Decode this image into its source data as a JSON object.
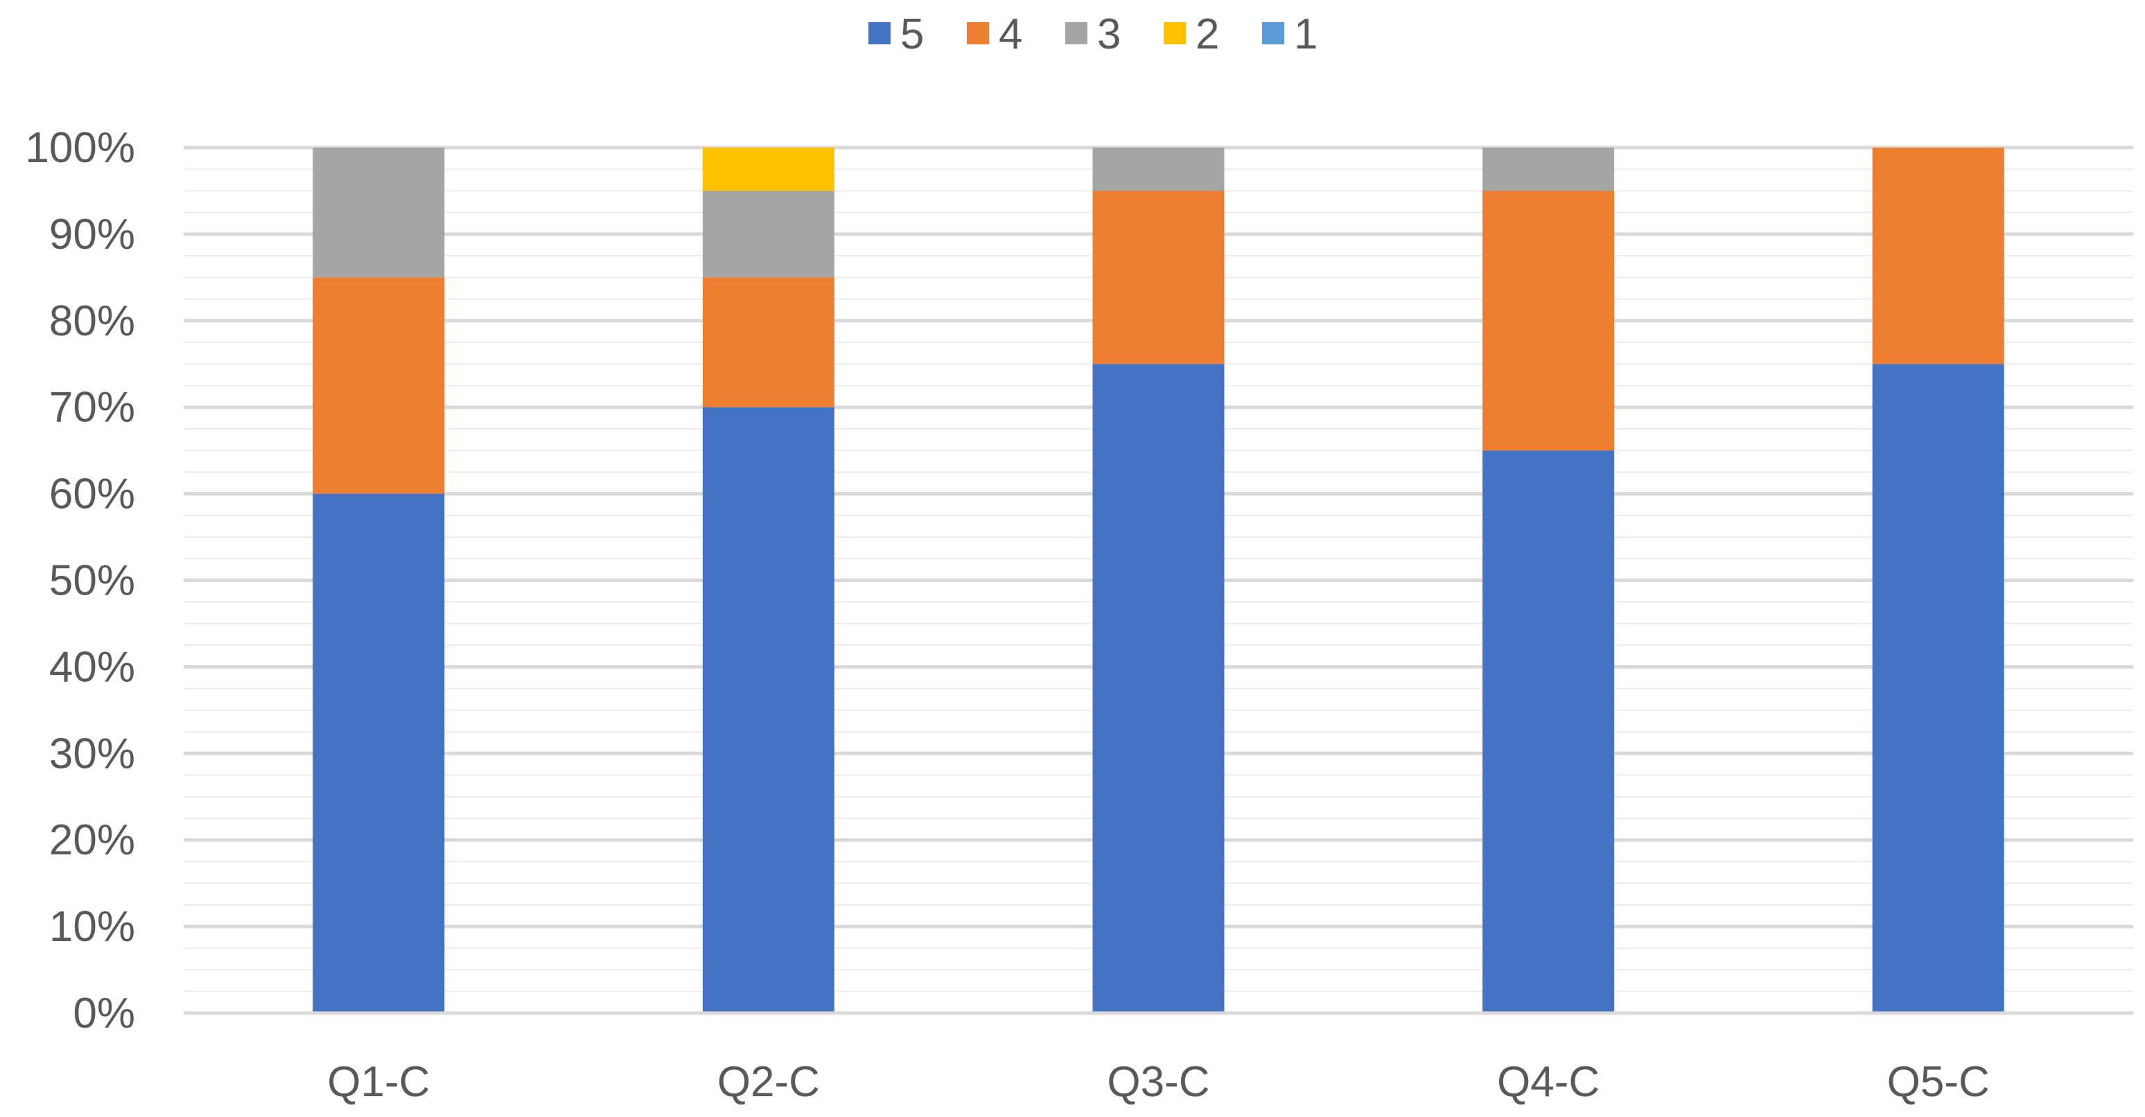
{
  "chart_data": {
    "type": "bar",
    "stacked": true,
    "percent_stacked": true,
    "categories": [
      "Q1-C",
      "Q2-C",
      "Q3-C",
      "Q4-C",
      "Q5-C"
    ],
    "series": [
      {
        "name": "5",
        "color": "#4472C4",
        "values": [
          60,
          70,
          75,
          65,
          75
        ]
      },
      {
        "name": "4",
        "color": "#ED7D31",
        "values": [
          25,
          15,
          20,
          30,
          25
        ]
      },
      {
        "name": "3",
        "color": "#A5A5A5",
        "values": [
          15,
          10,
          5,
          5,
          0
        ]
      },
      {
        "name": "2",
        "color": "#FFC000",
        "values": [
          0,
          5,
          0,
          0,
          0
        ]
      },
      {
        "name": "1",
        "color": "#5B9BD5",
        "values": [
          0,
          0,
          0,
          0,
          0
        ]
      }
    ],
    "legend_order": [
      "5",
      "4",
      "3",
      "2",
      "1"
    ],
    "legend_position": "top",
    "y_ticks": [
      "0%",
      "10%",
      "20%",
      "30%",
      "40%",
      "50%",
      "60%",
      "70%",
      "80%",
      "90%",
      "100%"
    ],
    "ylim": [
      0,
      100
    ],
    "grid": true,
    "minor_grid": true,
    "title": "",
    "xlabel": "",
    "ylabel": ""
  }
}
